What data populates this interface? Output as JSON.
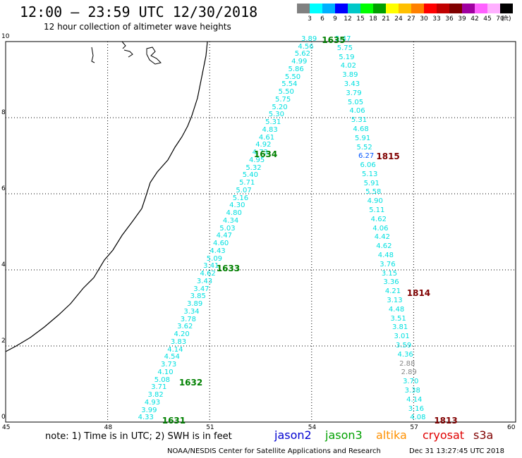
{
  "header": {
    "title": "12:00 – 23:59 UTC 12/30/2018",
    "subtitle": "12 hour collection of altimeter wave heights"
  },
  "colorbar": {
    "boxes": [
      "#808080",
      "#00ffff",
      "#00b0ff",
      "#0000ff",
      "#00c8c8",
      "#00ff00",
      "#00a000",
      "#ffff00",
      "#ffc000",
      "#ff8000",
      "#ff0000",
      "#c00000",
      "#800000",
      "#a000a0",
      "#ff60ff",
      "#ffb0ff",
      "#000000"
    ],
    "labels": [
      "3",
      "6",
      "9",
      "12",
      "15",
      "18",
      "21",
      "24",
      "27",
      "30",
      "33",
      "36",
      "39",
      "42",
      "45",
      "70"
    ],
    "units": "(ft)"
  },
  "axes": {
    "x_ticks": [
      "45",
      "48",
      "51",
      "54",
      "57",
      "60"
    ],
    "y_ticks": [
      "0",
      "2",
      "4",
      "6",
      "8",
      "10"
    ],
    "xlim": [
      45,
      60
    ],
    "ylim": [
      0,
      10
    ]
  },
  "tracks": [
    {
      "values": [
        "4.33",
        "3.99",
        "4.93",
        "3.82",
        "3.71",
        "5.08",
        "4.10",
        "3.73",
        "4.54",
        "4.14",
        "3.83",
        "4.20",
        "3.62",
        "3.78",
        "3.34",
        "3.89",
        "3.85",
        "3.47",
        "3.43",
        "4.62",
        "3.41",
        "5.09",
        "4.43",
        "4.60",
        "4.47",
        "5.03",
        "4.34",
        "4.80",
        "4.30",
        "5.16",
        "5.07",
        "5.71",
        "5.40",
        "5.32",
        "4.95",
        "4.73",
        "4.92",
        "4.61",
        "4.83",
        "5.31",
        "5.30",
        "5.20",
        "5.75",
        "5.50",
        "5.54",
        "5.50",
        "5.86",
        "4.99",
        "5.62",
        "4.56",
        "3.89"
      ],
      "lon_start": 49.1,
      "lon_end": 53.9,
      "lat_start": 0.05,
      "lat_end": 10.0
    },
    {
      "values": [
        "4.08",
        "3.16",
        "4.14",
        "3.38",
        "3.70",
        "2.89",
        "2.88",
        "4.36",
        "3.59",
        "3.01",
        "3.81",
        "3.51",
        "4.48",
        "3.13",
        "4.21",
        "3.36",
        "3.15",
        "3.76",
        "4.48",
        "4.62",
        "4.42",
        "4.06",
        "4.62",
        "5.11",
        "4.90",
        "5.58",
        "5.91",
        "5.13",
        "6.06",
        "6.27",
        "5.52",
        "5.91",
        "4.68",
        "5.31",
        "4.06",
        "5.05",
        "3.79",
        "3.43",
        "3.89",
        "4.02",
        "5.19",
        "5.75",
        "5.47"
      ],
      "lon_start": 57.1,
      "lon_end": 54.9,
      "lat_start": 0.05,
      "lat_end": 10.0,
      "gray_indices": [
        5,
        6
      ],
      "blue_indices": [
        29
      ]
    }
  ],
  "pass_labels": [
    {
      "text": "1631",
      "color": "green",
      "lon": 49.6,
      "lat": 0.0
    },
    {
      "text": "1632",
      "color": "green",
      "lon": 50.1,
      "lat": 1.0
    },
    {
      "text": "1633",
      "color": "green",
      "lon": 51.2,
      "lat": 4.0
    },
    {
      "text": "1634",
      "color": "green",
      "lon": 52.3,
      "lat": 7.0
    },
    {
      "text": "1635",
      "color": "green",
      "lon": 54.3,
      "lat": 10.0
    },
    {
      "text": "1813",
      "color": "darkred",
      "lon": 57.6,
      "lat": 0.0
    },
    {
      "text": "1814",
      "color": "darkred",
      "lon": 56.8,
      "lat": 3.35
    },
    {
      "text": "1815",
      "color": "darkred",
      "lon": 55.9,
      "lat": 6.95
    }
  ],
  "footer": {
    "note": "note:  1) Time is in UTC;  2) SWH is in feet",
    "satellites": [
      {
        "name": "jason2",
        "color": "#0000d0"
      },
      {
        "name": "jason3",
        "color": "#00a000"
      },
      {
        "name": "altika",
        "color": "#ff9000"
      },
      {
        "name": "cryosat",
        "color": "#e00000"
      },
      {
        "name": "s3a",
        "color": "#800000"
      }
    ],
    "credit": "NOAA/NESDIS Center for Satellite Applications and Research",
    "timestamp": "Dec 31 13:27:45 UTC 2018"
  }
}
